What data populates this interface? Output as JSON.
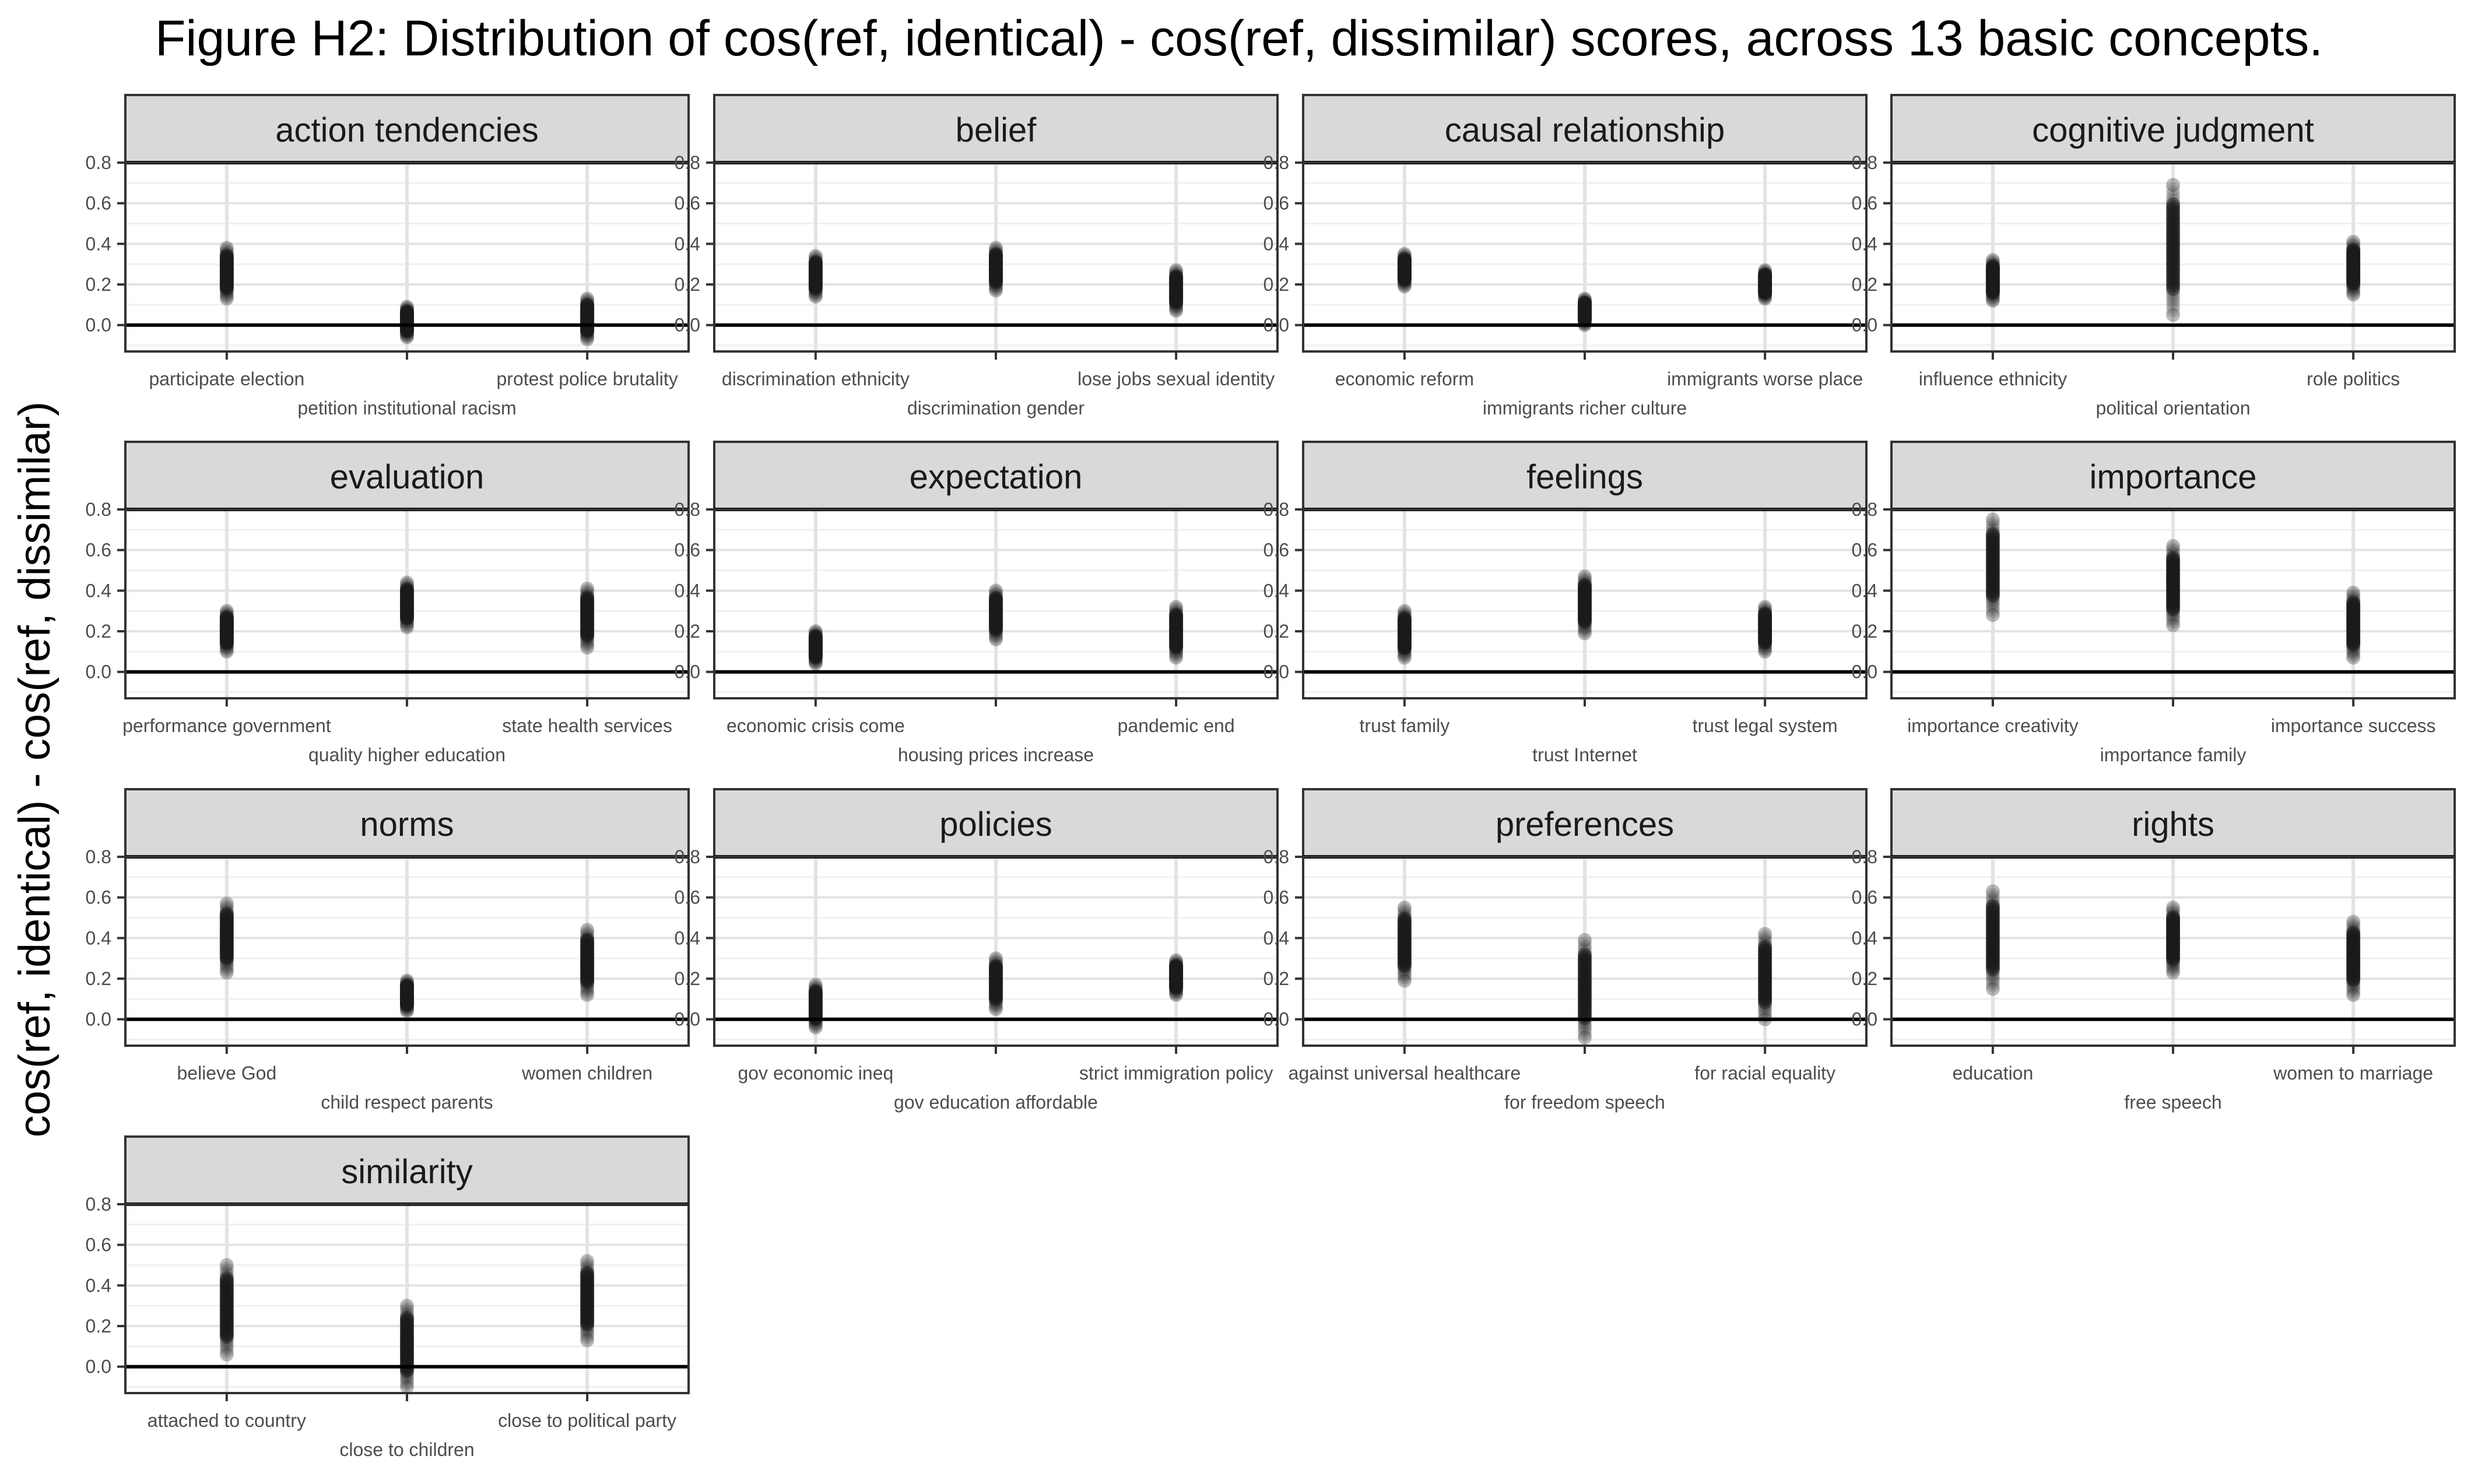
{
  "title": "Figure H2: Distribution of cos(ref, identical) - cos(ref, dissimilar) scores, across 13 basic concepts.",
  "ylabel": "cos(ref, identical) - cos(ref, dissimilar)",
  "chart_data": {
    "type": "scatter",
    "title": "Figure H2: Distribution of cos(ref, identical) - cos(ref, dissimilar) scores, across 13 basic concepts.",
    "xlabel": "",
    "ylabel": "cos(ref, identical) - cos(ref, dissimilar)",
    "ylim": [
      -0.13,
      0.8
    ],
    "yticks": [
      "0.0",
      "0.2",
      "0.4",
      "0.6",
      "0.8"
    ],
    "grid": true,
    "reference_line_y": 0,
    "point_color": "#1a1a1a",
    "facets": [
      {
        "name": "action tendencies",
        "categories": [
          "participate election",
          "petition institutional racism",
          "protest police brutality"
        ],
        "ranges": [
          [
            0.13,
            0.38
          ],
          [
            -0.06,
            0.09
          ],
          [
            -0.07,
            0.13
          ]
        ]
      },
      {
        "name": "belief",
        "categories": [
          "discrimination ethnicity",
          "discrimination gender",
          "lose jobs sexual identity"
        ],
        "ranges": [
          [
            0.14,
            0.34
          ],
          [
            0.17,
            0.38
          ],
          [
            0.07,
            0.27
          ]
        ]
      },
      {
        "name": "causal relationship",
        "categories": [
          "economic reform",
          "immigrants richer culture",
          "immigrants worse place"
        ],
        "ranges": [
          [
            0.19,
            0.35
          ],
          [
            0.0,
            0.13
          ],
          [
            0.13,
            0.27
          ]
        ]
      },
      {
        "name": "cognitive judgment",
        "categories": [
          "influence ethnicity",
          "political orientation",
          "role politics"
        ],
        "ranges": [
          [
            0.12,
            0.32
          ],
          [
            0.05,
            0.69
          ],
          [
            0.15,
            0.41
          ]
        ]
      },
      {
        "name": "evaluation",
        "categories": [
          "performance government",
          "quality higher education",
          "state health services"
        ],
        "ranges": [
          [
            0.1,
            0.3
          ],
          [
            0.22,
            0.44
          ],
          [
            0.12,
            0.41
          ]
        ]
      },
      {
        "name": "expectation",
        "categories": [
          "economic crisis come",
          "housing prices increase",
          "pandemic end"
        ],
        "ranges": [
          [
            0.04,
            0.2
          ],
          [
            0.16,
            0.4
          ],
          [
            0.07,
            0.32
          ]
        ]
      },
      {
        "name": "feelings",
        "categories": [
          "trust family",
          "trust Internet",
          "trust legal system"
        ],
        "ranges": [
          [
            0.07,
            0.3
          ],
          [
            0.19,
            0.47
          ],
          [
            0.1,
            0.32
          ]
        ]
      },
      {
        "name": "importance",
        "categories": [
          "importance creativity",
          "importance family",
          "importance success"
        ],
        "ranges": [
          [
            0.28,
            0.75
          ],
          [
            0.23,
            0.62
          ],
          [
            0.07,
            0.39
          ]
        ]
      },
      {
        "name": "norms",
        "categories": [
          "believe God",
          "child respect parents",
          "women children"
        ],
        "ranges": [
          [
            0.23,
            0.57
          ],
          [
            0.04,
            0.19
          ],
          [
            0.12,
            0.44
          ]
        ]
      },
      {
        "name": "policies",
        "categories": [
          "gov economic ineq",
          "gov education affordable",
          "strict immigration policy"
        ],
        "ranges": [
          [
            -0.04,
            0.17
          ],
          [
            0.05,
            0.3
          ],
          [
            0.12,
            0.29
          ]
        ]
      },
      {
        "name": "preferences",
        "categories": [
          "against universal healthcare",
          "for freedom speech",
          "for racial equality"
        ],
        "ranges": [
          [
            0.19,
            0.55
          ],
          [
            -0.09,
            0.39
          ],
          [
            0.0,
            0.42
          ]
        ]
      },
      {
        "name": "rights",
        "categories": [
          "education",
          "free speech",
          "women to marriage"
        ],
        "ranges": [
          [
            0.15,
            0.63
          ],
          [
            0.23,
            0.55
          ],
          [
            0.12,
            0.48
          ]
        ]
      },
      {
        "name": "similarity",
        "categories": [
          "attached to country",
          "close to children",
          "close to political party"
        ],
        "ranges": [
          [
            0.06,
            0.5
          ],
          [
            -0.1,
            0.3
          ],
          [
            0.13,
            0.52
          ]
        ]
      }
    ]
  }
}
